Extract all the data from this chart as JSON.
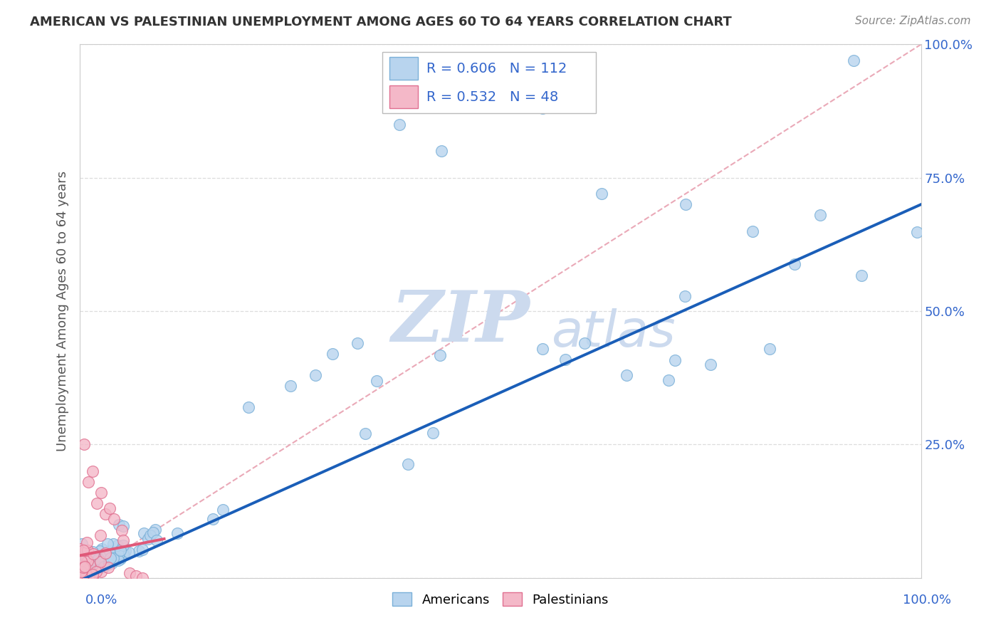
{
  "title": "AMERICAN VS PALESTINIAN UNEMPLOYMENT AMONG AGES 60 TO 64 YEARS CORRELATION CHART",
  "source": "Source: ZipAtlas.com",
  "ylabel": "Unemployment Among Ages 60 to 64 years",
  "legend_americans": "Americans",
  "legend_palestinians": "Palestinians",
  "r_americans": 0.606,
  "n_americans": 112,
  "r_palestinians": 0.532,
  "n_palestinians": 48,
  "american_color": "#b8d4ee",
  "american_edge": "#7ab0d8",
  "palestinian_color": "#f4b8c8",
  "palestinian_edge": "#e07090",
  "regression_american_color": "#1a5eb8",
  "regression_palestinian_color": "#e05878",
  "diagonal_color": "#e8a0b0",
  "watermark_color_zip": "#ccdaee",
  "watermark_color_atlas": "#ccdaee",
  "background_color": "#ffffff",
  "xlim": [
    0.0,
    1.0
  ],
  "ylim": [
    0.0,
    1.0
  ],
  "grid_color": "#dddddd",
  "tick_label_color": "#3366cc",
  "ylabel_color": "#555555",
  "title_color": "#333333"
}
